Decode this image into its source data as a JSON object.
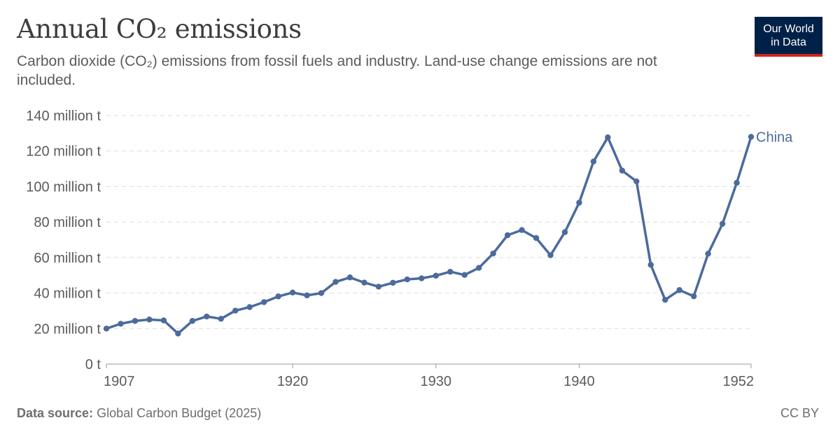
{
  "header": {
    "title": "Annual CO₂ emissions",
    "subtitle": "Carbon dioxide (CO₂) emissions from fossil fuels and industry. Land-use change emissions are not included."
  },
  "logo": {
    "line1": "Our World",
    "line2": "in Data"
  },
  "footer": {
    "source_label": "Data source:",
    "source_value": "Global Carbon Budget (2025)",
    "license": "CC BY"
  },
  "colors": {
    "series": "#4c6a9c",
    "grid": "#dddddd",
    "axis": "#999999",
    "logo_bg": "#002147",
    "logo_accent": "#ce261e"
  },
  "chart_data": {
    "type": "line",
    "y_ticks": [
      0,
      20,
      40,
      60,
      80,
      100,
      120,
      140
    ],
    "y_tick_labels": [
      "0 t",
      "20 million t",
      "40 million t",
      "60 million t",
      "80 million t",
      "100 million t",
      "120 million t",
      "140 million t"
    ],
    "x_ticks": [
      1907,
      1920,
      1930,
      1940,
      1952
    ],
    "x_tick_labels": [
      "1907",
      "1920",
      "1930",
      "1940",
      "1952"
    ],
    "xlim": [
      1907,
      1952
    ],
    "ylim": [
      0,
      140
    ],
    "grid": "horizontal-dashed",
    "series": [
      {
        "name": "China",
        "x": [
          1907,
          1908,
          1909,
          1910,
          1911,
          1912,
          1913,
          1914,
          1915,
          1916,
          1917,
          1918,
          1919,
          1920,
          1921,
          1922,
          1923,
          1924,
          1925,
          1926,
          1927,
          1928,
          1929,
          1930,
          1931,
          1932,
          1933,
          1934,
          1935,
          1936,
          1937,
          1938,
          1939,
          1940,
          1941,
          1942,
          1943,
          1944,
          1945,
          1946,
          1947,
          1948,
          1949,
          1950,
          1951,
          1952
        ],
        "values": [
          20,
          22.7,
          24.3,
          25.1,
          24.6,
          17.2,
          24.3,
          26.8,
          25.5,
          30.1,
          32.1,
          34.9,
          38.1,
          40.3,
          38.7,
          40,
          46.3,
          48.8,
          45.9,
          43.6,
          45.8,
          47.7,
          48.3,
          49.8,
          52,
          50.2,
          54.2,
          62.3,
          72.6,
          75.5,
          71,
          61.3,
          74.3,
          90.9,
          114.1,
          127.7,
          109,
          102.9,
          55.9,
          36.2,
          41.7,
          38.2,
          62.2,
          79,
          102.1,
          128
        ]
      }
    ]
  }
}
